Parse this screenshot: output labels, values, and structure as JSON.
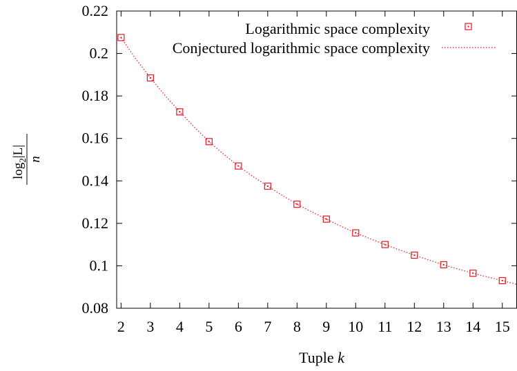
{
  "chart_data": {
    "type": "scatter",
    "title": "",
    "xlabel_text": "Tuple ",
    "xlabel_var": "k",
    "ylabel": {
      "numerator_prefix": "log",
      "subscript": "2",
      "numerator_body": "|L|",
      "denominator": "n"
    },
    "xlim": [
      1.85,
      15.5
    ],
    "ylim": [
      0.08,
      0.22
    ],
    "x_ticks": [
      2,
      3,
      4,
      5,
      6,
      7,
      8,
      9,
      10,
      11,
      12,
      13,
      14,
      15
    ],
    "y_ticks": [
      0.08,
      0.1,
      0.12,
      0.14,
      0.16,
      0.18,
      0.2,
      0.22
    ],
    "y_tick_labels": [
      "0.08",
      "0.1",
      "0.12",
      "0.14",
      "0.16",
      "0.18",
      "0.2",
      "0.22"
    ],
    "grid": false,
    "legend_position": "top-right",
    "series": [
      {
        "name": "Logarithmic space complexity",
        "style": "points",
        "marker": "square",
        "color": "#e8141e",
        "x": [
          2,
          3,
          4,
          5,
          6,
          7,
          8,
          9,
          10,
          11,
          12,
          13,
          14,
          15
        ],
        "y": [
          0.2075,
          0.1885,
          0.1725,
          0.1585,
          0.147,
          0.1375,
          0.129,
          0.122,
          0.1155,
          0.11,
          0.105,
          0.1005,
          0.0965,
          0.093
        ]
      },
      {
        "name": "Conjectured logarithmic space complexity",
        "style": "dotted-line",
        "color": "#e8141e",
        "x": [
          2,
          2.5,
          3,
          3.5,
          4,
          4.5,
          5,
          5.5,
          6,
          6.5,
          7,
          7.5,
          8,
          8.5,
          9,
          9.5,
          10,
          10.5,
          11,
          11.5,
          12,
          12.5,
          13,
          13.5,
          14,
          14.5,
          15,
          15.5
        ],
        "y": [
          0.2075,
          0.1975,
          0.1885,
          0.1802,
          0.1725,
          0.1653,
          0.1585,
          0.1525,
          0.147,
          0.142,
          0.1375,
          0.1331,
          0.129,
          0.1254,
          0.122,
          0.1186,
          0.1155,
          0.1127,
          0.11,
          0.1074,
          0.105,
          0.1027,
          0.1005,
          0.0984,
          0.0965,
          0.0947,
          0.093,
          0.0912
        ]
      }
    ]
  }
}
